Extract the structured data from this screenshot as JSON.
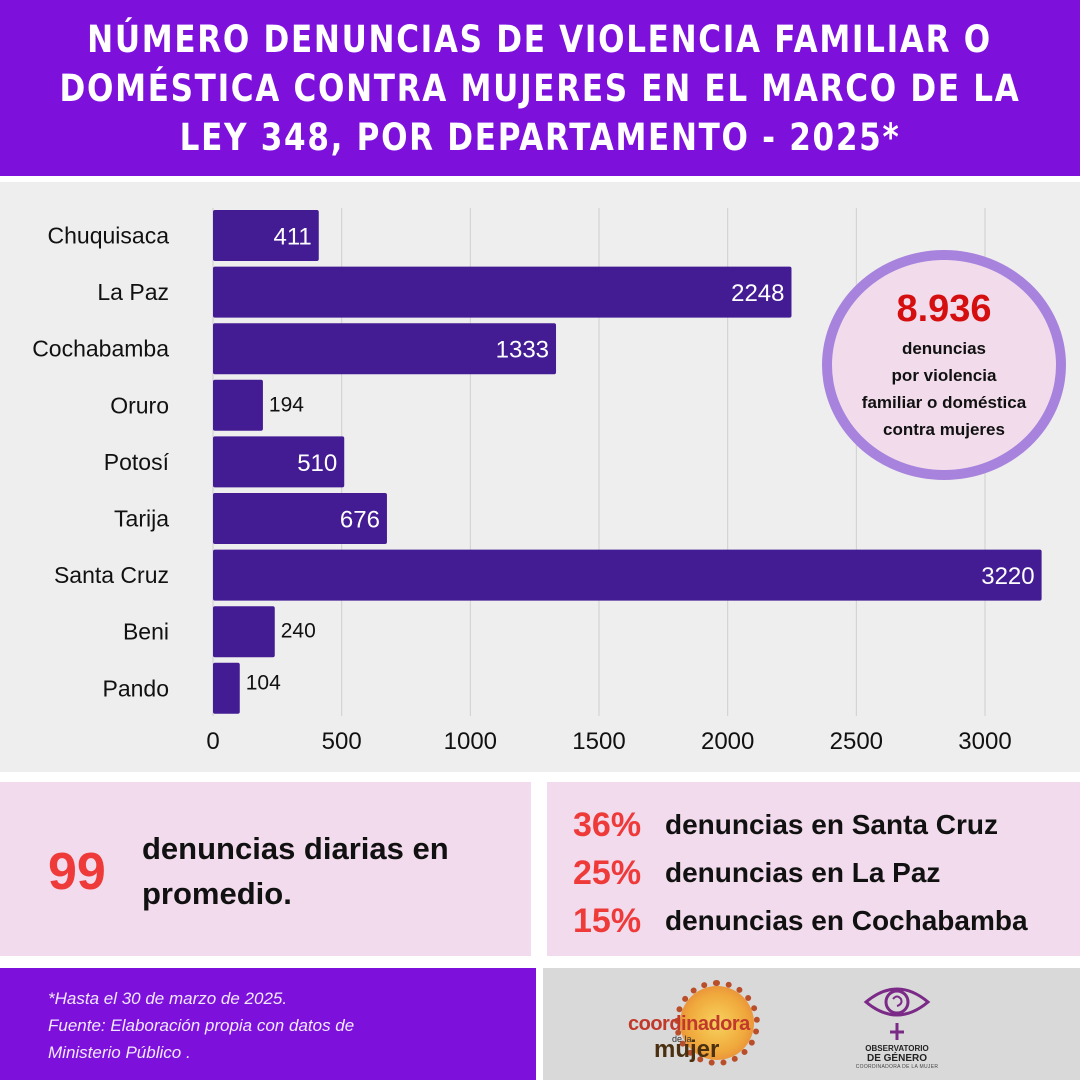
{
  "header": {
    "title_lines": [
      "NÚMERO DENUNCIAS DE VIOLENCIA FAMILIAR  O",
      "DOMÉSTICA CONTRA MUJERES EN EL MARCO DE LA",
      "LEY 348, POR DEPARTAMENTO - 2025*"
    ]
  },
  "chart_data": {
    "type": "bar",
    "orientation": "horizontal",
    "categories": [
      "Chuquisaca",
      "La Paz",
      "Cochabamba",
      "Oruro",
      "Potosí",
      "Tarija",
      "Santa Cruz",
      "Beni",
      "Pando"
    ],
    "values": [
      411,
      2248,
      1333,
      194,
      510,
      676,
      3220,
      240,
      104
    ],
    "value_labels": [
      "411",
      "2248",
      "1333",
      "194",
      "510",
      "676",
      "3220",
      "240",
      "104"
    ],
    "xlim": [
      0,
      3200
    ],
    "xticks": [
      0,
      500,
      1000,
      1500,
      2000,
      2500,
      3000
    ],
    "xtick_labels": [
      "0",
      "500",
      "1000",
      "1500",
      "2000",
      "2500",
      "3000"
    ],
    "grid": "vertical",
    "bar_color": "#431c94",
    "title": "",
    "xlabel": "",
    "ylabel": ""
  },
  "total_circle": {
    "number": "8.936",
    "lines": [
      "denuncias",
      "por violencia",
      "familiar o doméstica",
      "contra mujeres"
    ]
  },
  "daily": {
    "number": "99",
    "line1": "denuncias diarias en",
    "line2": "promedio."
  },
  "percentages": [
    {
      "value": "36%",
      "label": "denuncias en Santa Cruz"
    },
    {
      "value": "25%",
      "label": "denuncias en La Paz"
    },
    {
      "value": "15%",
      "label": "denuncias en Cochabamba"
    }
  ],
  "footer": {
    "note": "*Hasta el 30 de marzo de 2025.",
    "source_line1": "Fuente: Elaboración propia con datos de",
    "source_line2": "Ministerio Público ."
  },
  "logos": {
    "coordinadora_word": "coordinadora",
    "coordinadora_small": "de la",
    "coordinadora_word2": "mujer",
    "observatorio_line1": "OBSERVATORIO",
    "observatorio_line2": "DE GÉNERO",
    "observatorio_line3": "COORDINADORA DE LA MUJER"
  },
  "colors": {
    "header_purple": "#7e10dc",
    "bar": "#431c94",
    "accent_red": "#ef3a3a",
    "pink_panel": "#f1dbec",
    "circle_ring": "#a883dd"
  }
}
